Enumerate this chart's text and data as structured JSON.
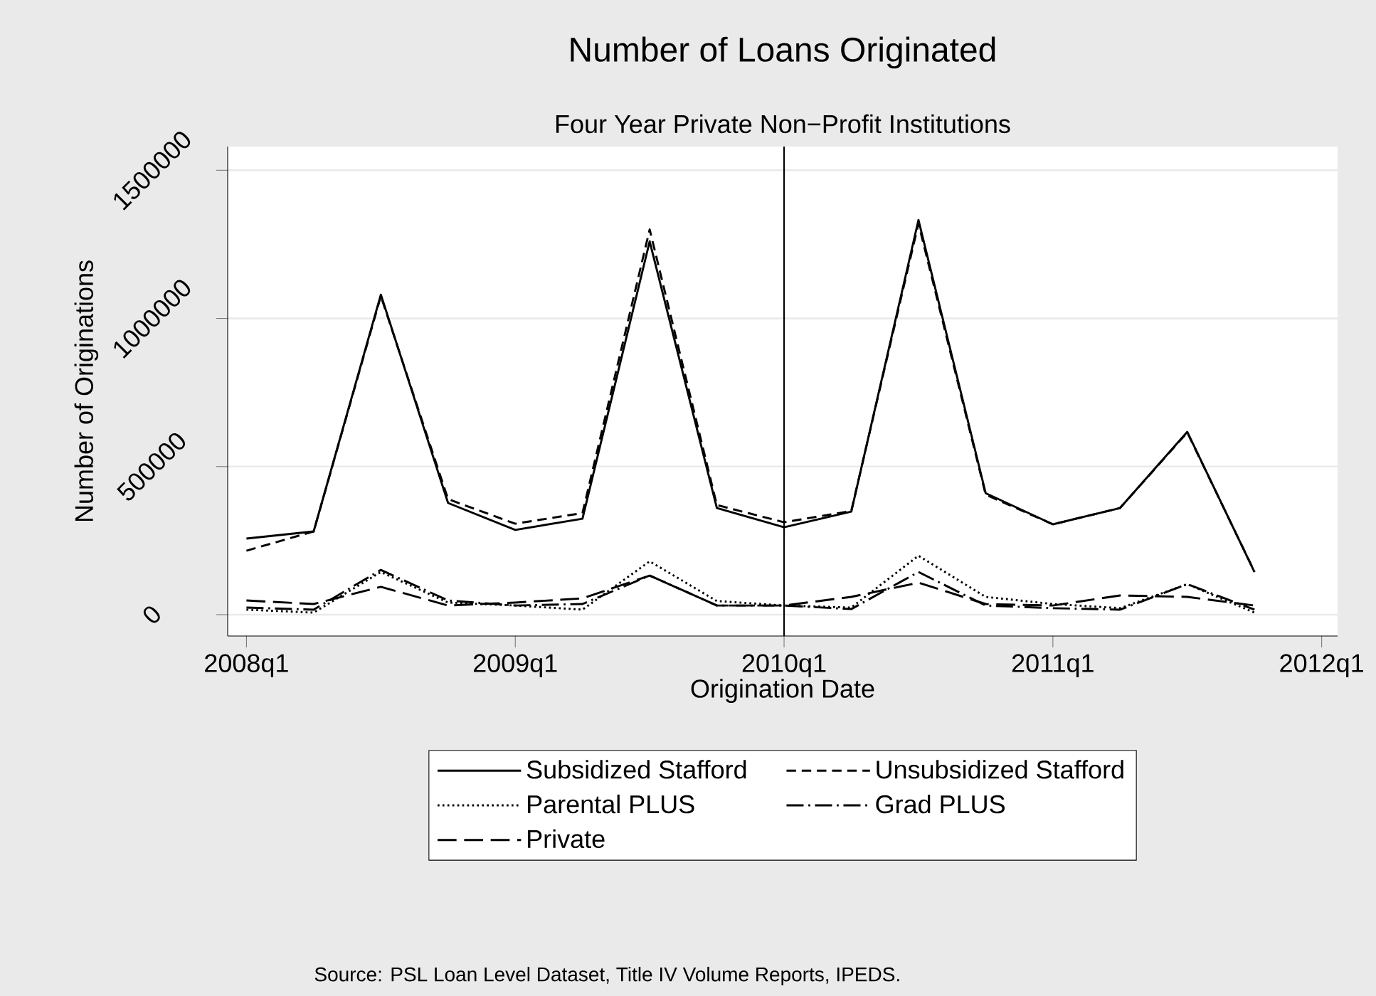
{
  "chart_data": {
    "type": "line",
    "title": "Number of Loans Originated",
    "subtitle": "Four Year Private Non−Profit Institutions",
    "xlabel": "Origination Date",
    "ylabel": "Number of Originations",
    "annotations": [
      "Source: PSL Loan Level Dataset, Title IV Volume Reports, IPEDS."
    ],
    "x": [
      "2008-01",
      "2008-04",
      "2008-07",
      "2008-10",
      "2009-01",
      "2009-04",
      "2009-07",
      "2009-10",
      "2010-01",
      "2010-04",
      "2010-07",
      "2010-10",
      "2011-01",
      "2011-04",
      "2011-07",
      "2011-10"
    ],
    "series": [
      {
        "name": "Subsidized Stafford",
        "color": "#000000",
        "line_style": "solid",
        "values": [
          257000,
          281000,
          1080000,
          377000,
          286000,
          324000,
          1260000,
          360000,
          295000,
          348000,
          1332000,
          410000,
          305000,
          360000,
          617000,
          144000
        ]
      },
      {
        "name": "Unsubsidized Stafford",
        "color": "#000000",
        "line_style": "dashed",
        "values": [
          216000,
          281000,
          1075000,
          390000,
          307000,
          343000,
          1300000,
          370000,
          312000,
          350000,
          1320000,
          405000,
          305000,
          360000,
          615000,
          145000
        ]
      },
      {
        "name": "Parental PLUS",
        "color": "#000000",
        "line_style": "dotted",
        "values": [
          17000,
          7000,
          144000,
          41000,
          31000,
          17000,
          180000,
          46000,
          31000,
          24000,
          199000,
          60000,
          36000,
          22000,
          103000,
          7000
        ]
      },
      {
        "name": "Grad PLUS",
        "color": "#000000",
        "line_style": "dashdot",
        "values": [
          24000,
          17000,
          151000,
          48000,
          31000,
          36000,
          132000,
          31000,
          31000,
          19000,
          144000,
          31000,
          22000,
          17000,
          103000,
          17000
        ]
      },
      {
        "name": "Private",
        "color": "#000000",
        "line_style": "longdash",
        "values": [
          48000,
          36000,
          94000,
          31000,
          41000,
          55000,
          132000,
          31000,
          31000,
          60000,
          108000,
          36000,
          31000,
          65000,
          60000,
          31000
        ]
      }
    ],
    "xlim": [
      "2007-12-06",
      "2012-01-23"
    ],
    "ylim": [
      -72000,
      1580000
    ],
    "xticks": [
      {
        "value": "2008-01",
        "label": "2008q1"
      },
      {
        "value": "2009-01",
        "label": "2009q1"
      },
      {
        "value": "2010-01",
        "label": "2010q1"
      },
      {
        "value": "2011-01",
        "label": "2011q1"
      },
      {
        "value": "2012-01",
        "label": "2012q1"
      }
    ],
    "yticks": [
      0,
      500000,
      1000000,
      1500000
    ],
    "ref_lines": [
      {
        "axis": "x",
        "value": "2010-01",
        "color": "#000000"
      }
    ],
    "grid": "y",
    "legend": "bottom",
    "marker": "none"
  }
}
